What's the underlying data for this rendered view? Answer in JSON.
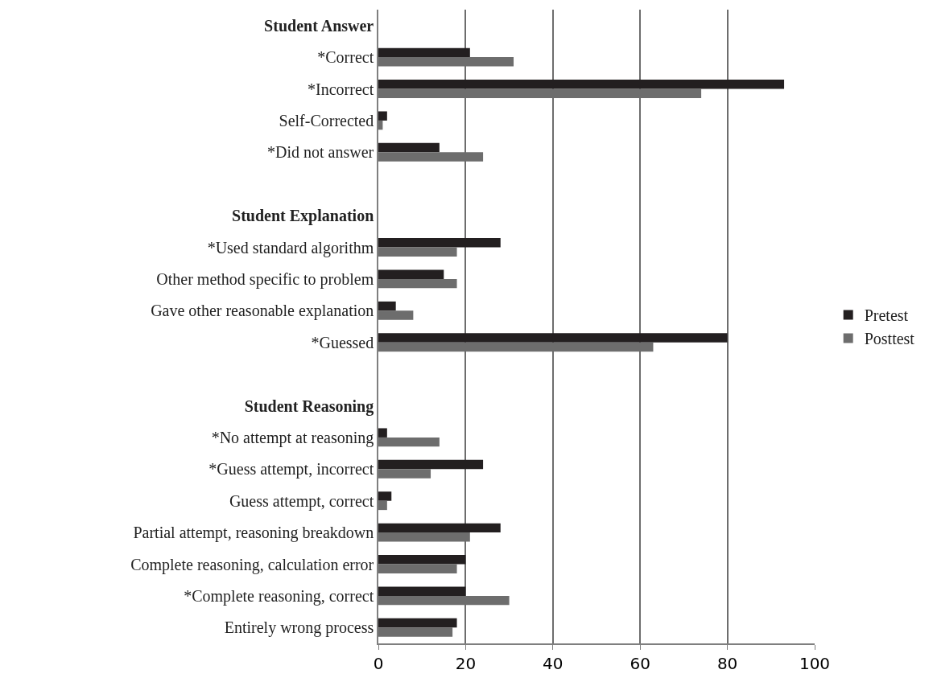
{
  "chart_data": {
    "type": "bar",
    "orientation": "horizontal",
    "categories": [
      "Student Answer",
      "*Correct",
      "*Incorrect",
      "Self-Corrected",
      "*Did not answer",
      null,
      "Student Explanation",
      "*Used standard algorithm",
      "Other method specific to problem",
      "Gave other reasonable explanation",
      "*Guessed",
      null,
      "Student Reasoning",
      "*No attempt at reasoning",
      "*Guess attempt, incorrect",
      "Guess attempt, correct",
      "Partial attempt, reasoning breakdown",
      "Complete reasoning, calculation error",
      "*Complete reasoning, correct",
      "Entirely wrong process"
    ],
    "series": [
      {
        "name": "Pretest",
        "color": "#231f20",
        "values": [
          null,
          21,
          93,
          2,
          14,
          null,
          null,
          28,
          15,
          4,
          80,
          null,
          null,
          2,
          24,
          3,
          28,
          20,
          20,
          18
        ]
      },
      {
        "name": "Posttest",
        "color": "#6d6d6d",
        "values": [
          null,
          31,
          74,
          1,
          24,
          null,
          null,
          18,
          18,
          8,
          63,
          null,
          null,
          14,
          12,
          2,
          21,
          18,
          30,
          17
        ]
      }
    ],
    "xlim": [
      0,
      100
    ],
    "xticks": [
      0,
      20,
      40,
      60,
      80,
      100
    ],
    "grid": "x",
    "legend": "right"
  }
}
